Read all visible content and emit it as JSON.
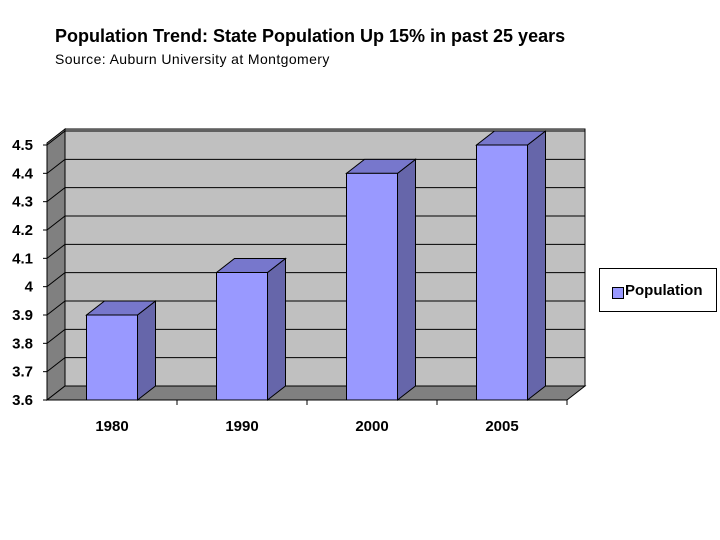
{
  "title": "Population Trend: State Population Up 15% in past 25 years",
  "subtitle": "Source: Auburn University at Montgomery",
  "colors": {
    "bar_front": "#9999ff",
    "bar_side": "#6666aa",
    "bar_top": "#7777cc",
    "back_wall": "#c0c0c0",
    "floor": "#808080",
    "side_wall": "#808080"
  },
  "chart_data": {
    "type": "bar",
    "categories": [
      "1980",
      "1990",
      "2000",
      "2005"
    ],
    "series": [
      {
        "name": "Population",
        "values": [
          3.9,
          4.05,
          4.4,
          4.5
        ]
      }
    ],
    "title": "Population Trend: State Population Up 15% in past 25 years",
    "subtitle": "Source: Auburn University at Montgomery",
    "xlabel": "",
    "ylabel": "",
    "ylim": [
      3.6,
      4.5
    ],
    "yticks": [
      "3.6",
      "3.7",
      "3.8",
      "3.9",
      "4",
      "4.1",
      "4.2",
      "4.3",
      "4.4",
      "4.5"
    ],
    "grid": true,
    "legend": "right",
    "style": "3d"
  }
}
